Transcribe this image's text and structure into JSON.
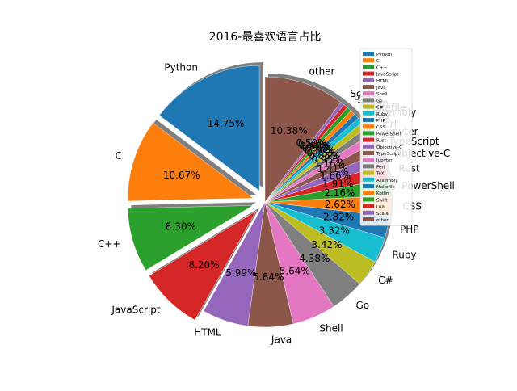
{
  "chart_data": {
    "type": "pie",
    "title": "2016-最喜欢语言占比",
    "start_angle_deg": 90,
    "direction": "counterclockwise",
    "exploded": [
      "Python",
      "C",
      "C++",
      "JavaScript"
    ],
    "shadow": true,
    "legend": "top-right",
    "slices": [
      {
        "label": "Python",
        "value": 14.75,
        "color": "#1f77b4",
        "pct": "14.75%"
      },
      {
        "label": "C",
        "value": 10.67,
        "color": "#ff7f0e",
        "pct": "10.67%"
      },
      {
        "label": "C++",
        "value": 8.3,
        "color": "#2ca02c",
        "pct": "8.30%"
      },
      {
        "label": "JavaScript",
        "value": 8.2,
        "color": "#d62728",
        "pct": "8.20%"
      },
      {
        "label": "HTML",
        "value": 5.99,
        "color": "#9467bd",
        "pct": "5.99%"
      },
      {
        "label": "Java",
        "value": 5.84,
        "color": "#8c564b",
        "pct": "5.84%"
      },
      {
        "label": "Shell",
        "value": 5.64,
        "color": "#e377c2",
        "pct": "5.64%"
      },
      {
        "label": "Go",
        "value": 4.38,
        "color": "#7f7f7f",
        "pct": "4.38%"
      },
      {
        "label": "C#",
        "value": 3.42,
        "color": "#bcbd22",
        "pct": "3.42%"
      },
      {
        "label": "Ruby",
        "value": 3.32,
        "color": "#17becf",
        "pct": "3.32%"
      },
      {
        "label": "PHP",
        "value": 2.82,
        "color": "#1f77b4",
        "pct": "2.82%"
      },
      {
        "label": "CSS",
        "value": 2.62,
        "color": "#ff7f0e",
        "pct": "2.62%"
      },
      {
        "label": "PowerShell",
        "value": 2.16,
        "color": "#2ca02c",
        "pct": "2.16%"
      },
      {
        "label": "Rust",
        "value": 1.91,
        "color": "#d62728",
        "pct": "1.91%"
      },
      {
        "label": "Objective-C",
        "value": 1.66,
        "color": "#9467bd",
        "pct": "1.66%"
      },
      {
        "label": "TypeScript",
        "value": 1.41,
        "color": "#8c564b",
        "pct": "1.41%"
      },
      {
        "label": "Jupyter",
        "value": 1.16,
        "color": "#e377c2",
        "pct": "1.16%"
      },
      {
        "label": "Perl",
        "value": 0.95,
        "color": "#7f7f7f",
        "pct": "0.95%"
      },
      {
        "label": "TeX",
        "value": 0.85,
        "color": "#bcbd22",
        "pct": "0.85%"
      },
      {
        "label": "Assembly",
        "value": 0.75,
        "color": "#17becf",
        "pct": "0.75%"
      },
      {
        "label": "Makefile",
        "value": 0.7,
        "color": "#1f77b4",
        "pct": "0.70%"
      },
      {
        "label": "Kotlin",
        "value": 0.65,
        "color": "#ff7f0e",
        "pct": "0.65%"
      },
      {
        "label": "Swift",
        "value": 0.6,
        "color": "#2ca02c",
        "pct": "0.60%"
      },
      {
        "label": "Lua",
        "value": 0.55,
        "color": "#d62728",
        "pct": "0.55%"
      },
      {
        "label": "Scala",
        "value": 0.5,
        "color": "#9467bd",
        "pct": "0.50%"
      },
      {
        "label": "other",
        "value": 10.38,
        "color": "#8c564b",
        "pct": "10.38%"
      }
    ]
  }
}
